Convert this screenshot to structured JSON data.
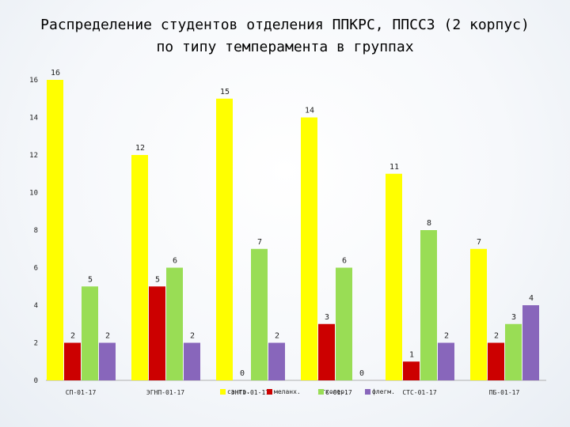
{
  "title": {
    "line1": "Распределение студентов отделения ППКРС, ППССЗ (2 корпус)",
    "line2": "по типу темперамента в группах"
  },
  "chart_data": {
    "type": "bar",
    "title": "Распределение студентов отделения ППКРС, ППССЗ (2 корпус) по типу темперамента в группах",
    "categories": [
      "СП-01-17",
      "ЭГНП-01-17",
      "ЭНТЭ-01-17",
      "ЭТС-01-17",
      "СТС-01-17",
      "ПБ-01-17"
    ],
    "series": [
      {
        "name": "сангв.",
        "color": "#ffff00",
        "values": [
          16,
          12,
          15,
          14,
          11,
          7
        ]
      },
      {
        "name": "меланх.",
        "color": "#cc0000",
        "values": [
          2,
          5,
          0,
          3,
          1,
          2
        ]
      },
      {
        "name": "холер.",
        "color": "#99dd55",
        "values": [
          5,
          6,
          7,
          6,
          8,
          3
        ]
      },
      {
        "name": "флегм.",
        "color": "#8866bb",
        "values": [
          2,
          2,
          2,
          0,
          2,
          4
        ]
      }
    ],
    "ylim": [
      0,
      16
    ],
    "yticks": [
      0,
      2,
      4,
      6,
      8,
      10,
      12,
      14,
      16
    ],
    "grid": false,
    "legend_position": "bottom"
  }
}
